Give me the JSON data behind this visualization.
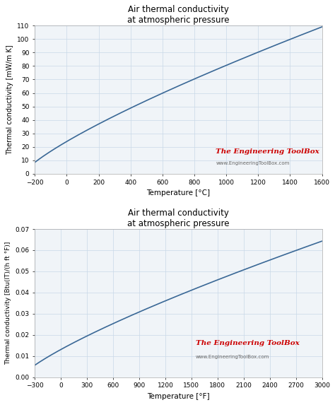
{
  "title1": "Air thermal conductivity",
  "subtitle1": "at atmospheric pressure",
  "xlabel1": "Temperature [°C]",
  "ylabel1": "Thermal conductivity [mW/m K]",
  "xlim1": [
    -200,
    1600
  ],
  "ylim1": [
    0,
    110
  ],
  "xticks1": [
    -200,
    0,
    200,
    400,
    600,
    800,
    1000,
    1200,
    1400,
    1600
  ],
  "yticks1": [
    0,
    10,
    20,
    30,
    40,
    50,
    60,
    70,
    80,
    90,
    100,
    110
  ],
  "title2": "Air thermal conductivity",
  "subtitle2": "at atmospheric pressure",
  "xlabel2": "Temperature [°F]",
  "ylabel2": "Thermal conductivity [Btu(IT)/(h ft °F)]",
  "xlim2": [
    -300,
    3000
  ],
  "ylim2": [
    0,
    0.07
  ],
  "xticks2": [
    -300,
    0,
    300,
    600,
    900,
    1200,
    1500,
    1800,
    2100,
    2400,
    2700,
    3000
  ],
  "yticks2": [
    0,
    0.01,
    0.02,
    0.03,
    0.04,
    0.05,
    0.06,
    0.07
  ],
  "line_color": "#3a6896",
  "grid_color": "#c8d8e8",
  "bg_color": "#f0f4f8",
  "brand_text": "The Engineering ToolBox",
  "brand_url": "www.EngineeringToolBox.com",
  "brand_color": "#cc0000",
  "brand_url_color": "#666666",
  "fig_width": 4.74,
  "fig_height": 5.73,
  "dpi": 100
}
